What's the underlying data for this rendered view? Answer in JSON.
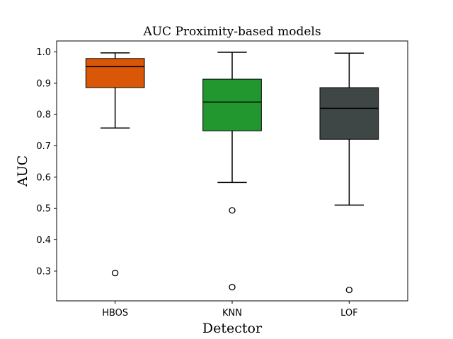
{
  "chart_data": {
    "type": "box",
    "title": "AUC Proximity-based models",
    "xlabel": "Detector",
    "ylabel": "AUC",
    "ylim": [
      0.205,
      1.035
    ],
    "yticks": [
      "0.3",
      "0.4",
      "0.5",
      "0.6",
      "0.7",
      "0.8",
      "0.9",
      "1.0"
    ],
    "grid": false,
    "categories": [
      "HBOS",
      "KNN",
      "LOF"
    ],
    "boxes": [
      {
        "name": "HBOS",
        "whisker_low": 0.757,
        "q1": 0.886,
        "median": 0.953,
        "q3": 0.979,
        "whisker_high": 0.997,
        "outliers": [
          0.294
        ],
        "color": "#d95707"
      },
      {
        "name": "KNN",
        "whisker_low": 0.583,
        "q1": 0.748,
        "median": 0.84,
        "q3": 0.913,
        "whisker_high": 0.999,
        "outliers": [
          0.494,
          0.249
        ],
        "color": "#22972f"
      },
      {
        "name": "LOF",
        "whisker_low": 0.511,
        "q1": 0.721,
        "median": 0.82,
        "q3": 0.886,
        "whisker_high": 0.996,
        "outliers": [
          0.24
        ],
        "color": "#3f4746"
      }
    ]
  }
}
